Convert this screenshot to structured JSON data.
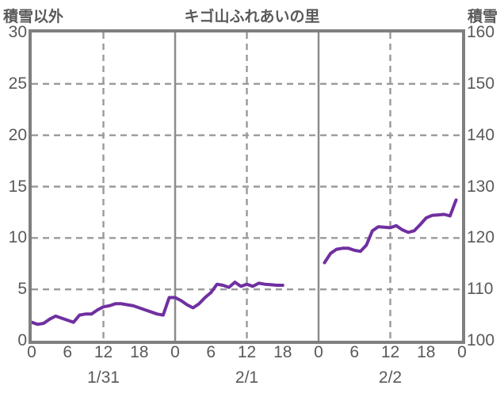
{
  "header": {
    "left_axis_title": "積雪以外",
    "title": "キゴ山ふれあいの里",
    "right_axis_title": "積雪"
  },
  "colors": {
    "line": "#7030a0",
    "frame": "#7f7f7f",
    "grid_dashed": "#9a9a9a",
    "grid_solid": "#8c8c8c",
    "text": "#595959"
  },
  "chart_data": {
    "type": "line",
    "title": "キゴ山ふれあいの里",
    "legend": "none",
    "grid": true,
    "x_axis": {
      "unit": "hours from 1/31 0:00",
      "range_hours": [
        0,
        72
      ],
      "hour_ticks": [
        {
          "hour": 0,
          "label": "0"
        },
        {
          "hour": 6,
          "label": "6"
        },
        {
          "hour": 12,
          "label": "12"
        },
        {
          "hour": 18,
          "label": "18"
        },
        {
          "hour": 24,
          "label": "0"
        },
        {
          "hour": 30,
          "label": "6"
        },
        {
          "hour": 36,
          "label": "12"
        },
        {
          "hour": 42,
          "label": "18"
        },
        {
          "hour": 48,
          "label": "0"
        },
        {
          "hour": 54,
          "label": "6"
        },
        {
          "hour": 60,
          "label": "12"
        },
        {
          "hour": 66,
          "label": "18"
        },
        {
          "hour": 72,
          "label": "0"
        }
      ],
      "date_labels": [
        {
          "label": "1/31",
          "hour": 12
        },
        {
          "label": "2/1",
          "hour": 36
        },
        {
          "label": "2/2",
          "hour": 60
        }
      ],
      "solid_gridline_hours": [
        24,
        48
      ],
      "dashed_gridline_hours": [
        12,
        36,
        60
      ]
    },
    "left_axis": {
      "title": "積雪以外",
      "range": [
        0,
        30
      ],
      "ticks": [
        30,
        25,
        20,
        15,
        10,
        5,
        0
      ]
    },
    "right_axis": {
      "title": "積雪",
      "range": [
        100,
        160
      ],
      "ticks": [
        160,
        150,
        140,
        130,
        120,
        110,
        100
      ]
    },
    "dashed_horizontal_gridlines_right_axis": [
      150,
      140,
      130,
      120,
      110
    ],
    "series": [
      {
        "name": "積雪",
        "axis": "right",
        "color": "#7030a0",
        "note": "hourly snow depth (cm); data gap between 2/1 18:00 and 2/2 1:00",
        "segments": [
          {
            "start_hour": 0,
            "values": [
              103.6,
              103.2,
              103.4,
              104.2,
              104.8,
              104.4,
              104.0,
              103.6,
              105.0,
              105.2,
              105.2,
              106.0,
              106.6,
              106.8,
              107.2,
              107.2,
              107.0,
              106.8,
              106.4,
              106.0,
              105.6,
              105.2,
              105.0,
              108.4,
              108.4,
              107.8,
              107.0,
              106.4,
              107.2,
              108.4,
              109.4,
              111.0,
              110.8,
              110.4,
              111.4,
              110.6,
              111.0,
              110.6,
              111.2,
              111.0,
              110.9,
              110.8,
              110.8
            ]
          },
          {
            "start_hour": 49,
            "values": [
              115.2,
              117.0,
              117.8,
              118.0,
              118.0,
              117.6,
              117.4,
              118.6,
              121.4,
              122.2,
              122.1,
              122.0,
              122.4,
              121.6,
              121.1,
              121.4,
              122.6,
              123.9,
              124.4,
              124.5,
              124.6,
              124.3,
              127.4
            ]
          }
        ]
      }
    ]
  }
}
